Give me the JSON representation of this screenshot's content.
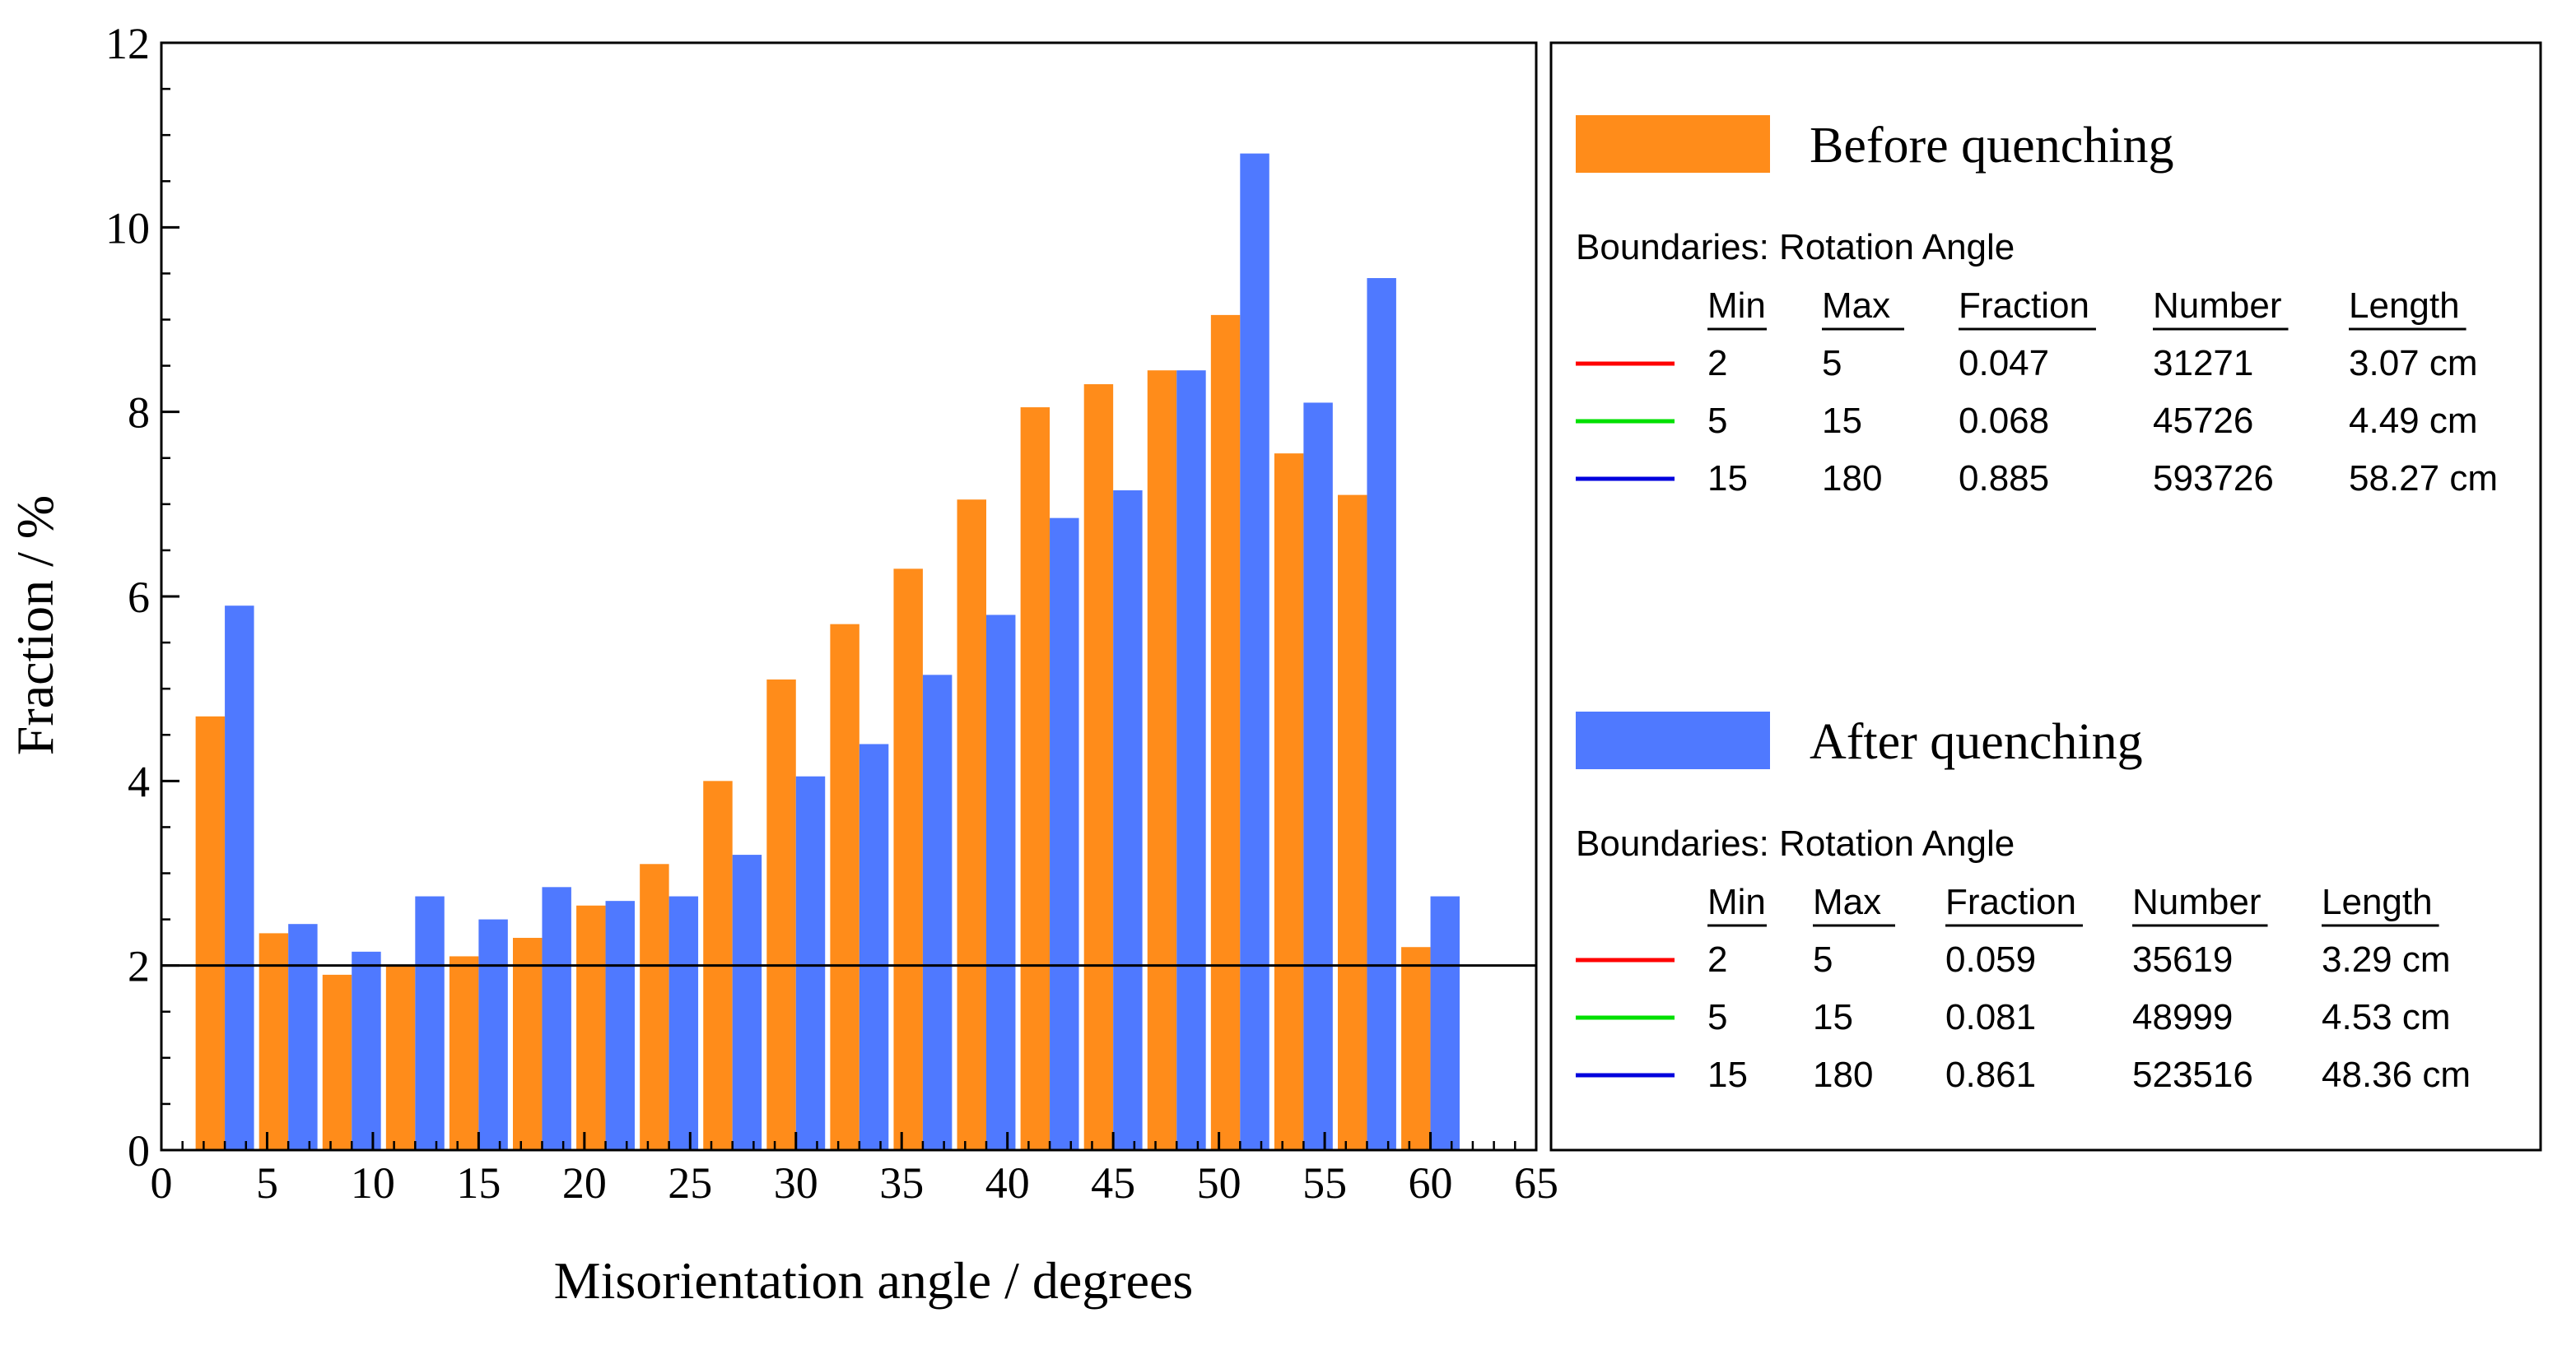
{
  "chart_data": {
    "type": "bar",
    "xlabel": "Misorientation angle / degrees",
    "ylabel": "Fraction / %",
    "xlim": [
      0,
      65
    ],
    "ylim": [
      0,
      12
    ],
    "xticks": [
      "0",
      "5",
      "10",
      "15",
      "20",
      "25",
      "30",
      "35",
      "40",
      "45",
      "50",
      "55",
      "60",
      "65"
    ],
    "yticks": [
      "0",
      "2",
      "4",
      "6",
      "8",
      "10",
      "12"
    ],
    "reference_line_y": 2,
    "bin_width": 3,
    "x": [
      3,
      6,
      9,
      12,
      15,
      18,
      21,
      24,
      27,
      30,
      33,
      36,
      39,
      42,
      45,
      48,
      51,
      54,
      57,
      60
    ],
    "series": [
      {
        "name": "Before quenching",
        "color": "#ff8c1a",
        "values": [
          4.7,
          2.35,
          1.9,
          2.0,
          2.1,
          2.3,
          2.65,
          3.1,
          4.0,
          5.1,
          5.7,
          6.3,
          7.05,
          8.05,
          8.3,
          8.45,
          9.05,
          7.55,
          7.1,
          2.2
        ]
      },
      {
        "name": "After quenching",
        "color": "#4f79ff",
        "values": [
          5.9,
          2.45,
          2.15,
          2.75,
          2.5,
          2.85,
          2.7,
          2.75,
          3.2,
          4.05,
          4.4,
          5.15,
          5.8,
          6.85,
          7.15,
          8.45,
          10.8,
          8.1,
          9.45,
          2.75
        ]
      }
    ],
    "legend": [
      {
        "title": "Before quenching",
        "color": "#ff8c1a",
        "subtitle": "Boundaries: Rotation Angle",
        "columns": [
          "Min",
          "Max",
          "Fraction",
          "Number",
          "Length"
        ],
        "rows": [
          {
            "line_color": "#ff0000",
            "cells": [
              "2",
              "5",
              "0.047",
              "31271",
              "3.07 cm"
            ]
          },
          {
            "line_color": "#00e000",
            "cells": [
              "5",
              "15",
              "0.068",
              "45726",
              "4.49 cm"
            ]
          },
          {
            "line_color": "#0000dd",
            "cells": [
              "15",
              "180",
              "0.885",
              "593726",
              "58.27 cm"
            ]
          }
        ]
      },
      {
        "title": "After quenching",
        "color": "#4f79ff",
        "subtitle": "Boundaries: Rotation Angle",
        "columns": [
          "Min",
          "Max",
          "Fraction",
          "Number",
          "Length"
        ],
        "rows": [
          {
            "line_color": "#ff0000",
            "cells": [
              "2",
              "5",
              "0.059",
              "35619",
              "3.29 cm"
            ]
          },
          {
            "line_color": "#00e000",
            "cells": [
              "5",
              "15",
              "0.081",
              "48999",
              "4.53 cm"
            ]
          },
          {
            "line_color": "#0000dd",
            "cells": [
              "15",
              "180",
              "0.861",
              "523516",
              "48.36 cm"
            ]
          }
        ]
      }
    ]
  }
}
